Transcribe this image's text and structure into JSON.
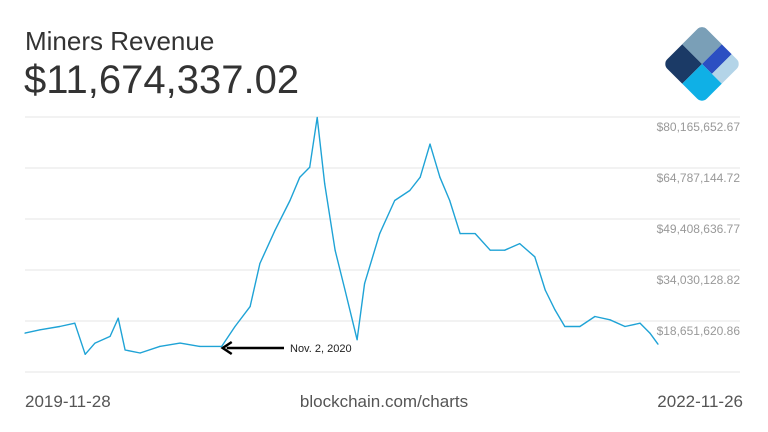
{
  "header": {
    "title": "Miners Revenue",
    "value": "$11,674,337.02"
  },
  "footer": {
    "start_date": "2019-11-28",
    "source": "blockchain.com/charts",
    "end_date": "2022-11-26"
  },
  "logo": {
    "name": "blockchain-logo",
    "colors": [
      "#1b3a66",
      "#7a9fb7",
      "#2b4fc2",
      "#b3d4e8",
      "#0fb0e6"
    ]
  },
  "chart_data": {
    "type": "line",
    "title": "",
    "xlabel": "",
    "ylabel": "",
    "color": "#1fa3d6",
    "ylim": [
      3273112.91,
      80165652.67
    ],
    "xlim": [
      "2019-11-28",
      "2022-11-26"
    ],
    "grid": true,
    "y_ticks": [
      18651620.86,
      34030128.82,
      49408636.77,
      64787144.72,
      80165652.67
    ],
    "y_tick_labels": [
      "$18,651,620.86",
      "$34,030,128.82",
      "$49,408,636.77",
      "$64,787,144.72",
      "$80,165,652.67"
    ],
    "annotation": {
      "label": "Nov. 2, 2020",
      "date": "2020-11-02"
    },
    "points": [
      [
        "2019-11-28",
        15.0
      ],
      [
        "2019-12-24",
        16.0
      ],
      [
        "2020-01-27",
        17.0
      ],
      [
        "2020-02-22",
        18.0
      ],
      [
        "2020-03-11",
        8.6
      ],
      [
        "2020-03-28",
        12.0
      ],
      [
        "2020-04-23",
        14.0
      ],
      [
        "2020-05-07",
        19.5
      ],
      [
        "2020-05-19",
        9.9
      ],
      [
        "2020-06-14",
        9.0
      ],
      [
        "2020-07-18",
        11.0
      ],
      [
        "2020-08-22",
        12.0
      ],
      [
        "2020-09-25",
        11.0
      ],
      [
        "2020-11-02",
        11.0
      ],
      [
        "2020-11-25",
        17.0
      ],
      [
        "2020-12-21",
        23.0
      ],
      [
        "2021-01-07",
        36.0
      ],
      [
        "2021-02-02",
        46.0
      ],
      [
        "2021-02-28",
        55.0
      ],
      [
        "2021-03-17",
        62.0
      ],
      [
        "2021-04-03",
        65.0
      ],
      [
        "2021-04-16",
        80.0
      ],
      [
        "2021-04-29",
        60.0
      ],
      [
        "2021-05-17",
        40.0
      ],
      [
        "2021-06-03",
        28.0
      ],
      [
        "2021-06-24",
        13.0
      ],
      [
        "2021-07-07",
        30.0
      ],
      [
        "2021-08-02",
        45.0
      ],
      [
        "2021-08-28",
        55.0
      ],
      [
        "2021-09-23",
        58.0
      ],
      [
        "2021-10-11",
        62.0
      ],
      [
        "2021-10-28",
        72.0
      ],
      [
        "2021-11-14",
        62.0
      ],
      [
        "2021-12-01",
        55.0
      ],
      [
        "2021-12-19",
        45.0
      ],
      [
        "2022-01-14",
        45.0
      ],
      [
        "2022-02-09",
        40.0
      ],
      [
        "2022-03-06",
        40.0
      ],
      [
        "2022-04-01",
        42.0
      ],
      [
        "2022-04-27",
        38.0
      ],
      [
        "2022-05-15",
        28.0
      ],
      [
        "2022-06-01",
        22.0
      ],
      [
        "2022-06-18",
        17.0
      ],
      [
        "2022-07-14",
        17.0
      ],
      [
        "2022-08-09",
        20.0
      ],
      [
        "2022-09-04",
        19.0
      ],
      [
        "2022-09-30",
        17.0
      ],
      [
        "2022-10-26",
        18.0
      ],
      [
        "2022-11-12",
        15.0
      ],
      [
        "2022-11-26",
        11.67
      ]
    ],
    "points_unit": "millions USD"
  }
}
